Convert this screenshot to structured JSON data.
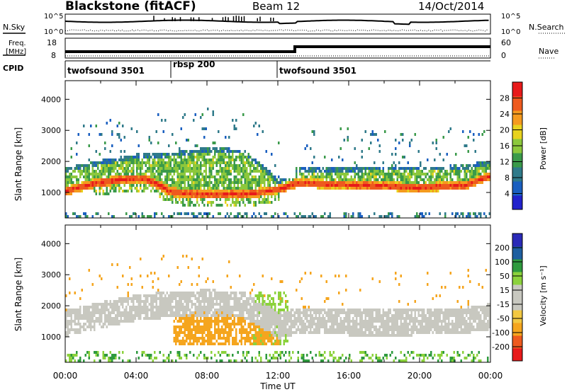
{
  "header": {
    "station": "Blackstone (fitACF)",
    "beam": "Beam 12",
    "date": "14/Oct/2014"
  },
  "aux_panels": {
    "nsky_label": "N.Sky",
    "nsearch_label": "N.Search",
    "nsky_ticks": [
      "10^5",
      "10^0"
    ],
    "nsearch_ticks": [
      "10^5",
      "10^0"
    ],
    "freq_label_1": "Freq.",
    "freq_label_2": "[MHz]",
    "freq_ticks": [
      "18",
      "8"
    ],
    "nave_label": "Nave",
    "nave_ticks": [
      "60",
      "0"
    ],
    "cpid_label": "CPID",
    "cpid_segments": [
      {
        "label": "twofsound 3501",
        "start_hour": 0,
        "end_hour": 6
      },
      {
        "label": "rbsp 200",
        "start_hour": 6,
        "end_hour": 12
      },
      {
        "label": "twofsound 3501",
        "start_hour": 12,
        "end_hour": 24
      }
    ]
  },
  "chart_data": [
    {
      "type": "heatmap",
      "title": "",
      "xlabel": "Time UT",
      "ylabel": "Slant Range [km]",
      "x_ticks": [
        "00:00",
        "04:00",
        "08:00",
        "12:00",
        "16:00",
        "20:00",
        "00:00"
      ],
      "xlim_hours": [
        0,
        24
      ],
      "y_ticks": [
        1000,
        2000,
        3000,
        4000
      ],
      "ylim": [
        180,
        4600
      ],
      "colorbar": {
        "label": "Power [dB]",
        "ticks": [
          "28",
          "24",
          "20",
          "16",
          "12",
          "8",
          "4"
        ],
        "range": [
          0,
          30
        ],
        "colors": [
          "#2222cc",
          "#1a5fc0",
          "#2f7a8a",
          "#3a9a4a",
          "#8cc83c",
          "#e8d21e",
          "#f59a1e",
          "#ee5a1e",
          "#e81a1a"
        ]
      },
      "main_echo_band_km": {
        "hours": [
          0,
          1.5,
          3,
          4.5,
          6,
          8,
          10,
          11,
          12,
          13,
          16,
          20,
          22.5,
          24
        ],
        "values": [
          1000,
          1230,
          1360,
          1400,
          960,
          880,
          900,
          960,
          1050,
          1250,
          1200,
          1110,
          1180,
          1500
        ]
      },
      "upper_echo_band_km": {
        "hours": [
          0,
          2,
          4,
          6,
          8,
          10,
          11.5,
          12,
          13,
          18,
          22,
          24
        ],
        "values": [
          1600,
          1850,
          2050,
          2100,
          2250,
          2200,
          1500,
          1200,
          1600,
          1650,
          1650,
          1850
        ]
      }
    },
    {
      "type": "heatmap",
      "title": "",
      "xlabel": "Time UT",
      "ylabel": "Slant Range [km]",
      "x_ticks": [
        "00:00",
        "04:00",
        "08:00",
        "12:00",
        "16:00",
        "20:00",
        "00:00"
      ],
      "xlim_hours": [
        0,
        24
      ],
      "y_ticks": [
        1000,
        2000,
        3000,
        4000
      ],
      "ylim": [
        180,
        4600
      ],
      "colorbar": {
        "label": "Velocity [m s⁻¹]",
        "ticks": [
          "200",
          "100",
          "50",
          "15",
          "-15",
          "-50",
          "-100",
          "-200"
        ],
        "range": [
          -250,
          250
        ],
        "colors": [
          "#e81a1a",
          "#ee5a1e",
          "#f5a51e",
          "#f2c842",
          "#c8c8c0",
          "#c8c8c0",
          "#8cd23c",
          "#2e9a3e",
          "#1e5fa0",
          "#2a2ab8"
        ]
      },
      "ground_scatter_band_km": {
        "hours": [
          0,
          2,
          4,
          6,
          8,
          10,
          11.5,
          12,
          13,
          18,
          22,
          24
        ],
        "values": [
          1400,
          1650,
          1900,
          2000,
          2050,
          2000,
          1500,
          1300,
          1450,
          1400,
          1450,
          1600
        ]
      },
      "negative_velocity_region_hours": [
        6,
        12
      ],
      "positive_velocity_region_hours": [
        10.5,
        12.5
      ]
    }
  ]
}
